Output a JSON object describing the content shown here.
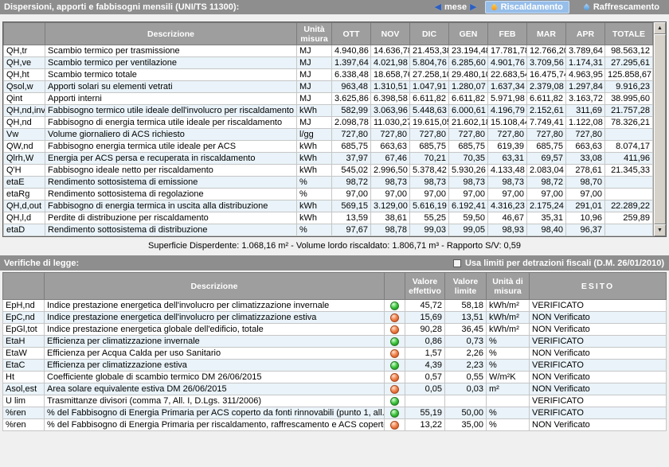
{
  "colors": {
    "title_bar": "#8E8E8E",
    "table_header": "#9E9E9E",
    "alt_row": "#E9F3F9",
    "selected_tab": "#97BEE9",
    "green_light": "#3CC43C",
    "orange_light": "#F08048",
    "nav_arrow_blue": "#2E5FBF"
  },
  "icons": {
    "prev_arrow": "◀",
    "next_arrow": "▶",
    "scroll_up": "▲",
    "scroll_down": "▼"
  },
  "header": {
    "title": "Dispersioni, apporti e fabbisogni mensili (UNI/TS 11300):",
    "mese": {
      "label": "mese"
    },
    "tabs": [
      {
        "label": "Riscaldamento",
        "icon": "flame-icon",
        "selected": true
      },
      {
        "label": "Raffrescamento",
        "icon": "water-drop-icon",
        "selected": false
      }
    ]
  },
  "monthly_table": {
    "headers": {
      "desc": "Descrizione",
      "unit": "Unità misura",
      "months": [
        "OTT",
        "NOV",
        "DIC",
        "GEN",
        "FEB",
        "MAR",
        "APR"
      ],
      "total": "TOTALE"
    },
    "rows": [
      {
        "code": "QH,tr",
        "desc": "Scambio termico per trasmissione",
        "unit": "MJ",
        "values": [
          "4.940,86",
          "14.636,78",
          "21.453,38",
          "23.194,48",
          "17.781,78",
          "12.766,20",
          "3.789,64"
        ],
        "total": "98.563,12"
      },
      {
        "code": "QH,ve",
        "desc": "Scambio termico per ventilazione",
        "unit": "MJ",
        "values": [
          "1.397,64",
          "4.021,98",
          "5.804,76",
          "6.285,60",
          "4.901,76",
          "3.709,56",
          "1.174,31"
        ],
        "total": "27.295,61"
      },
      {
        "code": "QH,ht",
        "desc": "Scambio termico totale",
        "unit": "MJ",
        "values": [
          "6.338,48",
          "18.658,76",
          "27.258,10",
          "29.480,10",
          "22.683,54",
          "16.475,74",
          "4.963,95"
        ],
        "total": "125.858,67"
      },
      {
        "code": "Qsol,w",
        "desc": "Apporti solari su elementi vetrati",
        "unit": "MJ",
        "values": [
          "963,48",
          "1.310,51",
          "1.047,91",
          "1.280,07",
          "1.637,34",
          "2.379,08",
          "1.297,84"
        ],
        "total": "9.916,23"
      },
      {
        "code": "Qint",
        "desc": "Apporti interni",
        "unit": "MJ",
        "values": [
          "3.625,86",
          "6.398,58",
          "6.611,82",
          "6.611,82",
          "5.971,98",
          "6.611,82",
          "3.163,72"
        ],
        "total": "38.995,60"
      },
      {
        "code": "QH,nd,inv",
        "desc": "Fabbisogno termico utile ideale dell'involucro per riscaldamento",
        "unit": "kWh",
        "values": [
          "582,99",
          "3.063,96",
          "5.448,63",
          "6.000,61",
          "4.196,79",
          "2.152,61",
          "311,69"
        ],
        "total": "21.757,28"
      },
      {
        "code": "QH,nd",
        "desc": "Fabbisogno di energia termica utile ideale per riscaldamento",
        "unit": "MJ",
        "values": [
          "2.098,78",
          "11.030,27",
          "19.615,05",
          "21.602,18",
          "15.108,44",
          "7.749,41",
          "1.122,08"
        ],
        "total": "78.326,21"
      },
      {
        "code": "Vw",
        "desc": "Volume giornaliero di ACS richiesto",
        "unit": "l/gg",
        "values": [
          "727,80",
          "727,80",
          "727,80",
          "727,80",
          "727,80",
          "727,80",
          "727,80"
        ],
        "total": ""
      },
      {
        "code": "QW,nd",
        "desc": "Fabbisogno energia termica utile ideale per ACS",
        "unit": "kWh",
        "values": [
          "685,75",
          "663,63",
          "685,75",
          "685,75",
          "619,39",
          "685,75",
          "663,63"
        ],
        "total": "8.074,17"
      },
      {
        "code": "Qlrh,W",
        "desc": "Energia per ACS persa e recuperata in riscaldamento",
        "unit": "kWh",
        "values": [
          "37,97",
          "67,46",
          "70,21",
          "70,35",
          "63,31",
          "69,57",
          "33,08"
        ],
        "total": "411,96"
      },
      {
        "code": "Q'H",
        "desc": "Fabbisogno ideale netto per riscaldamento",
        "unit": "kWh",
        "values": [
          "545,02",
          "2.996,50",
          "5.378,42",
          "5.930,26",
          "4.133,48",
          "2.083,04",
          "278,61"
        ],
        "total": "21.345,33"
      },
      {
        "code": "etaE",
        "desc": "Rendimento sottosistema di emissione",
        "unit": "%",
        "values": [
          "98,72",
          "98,73",
          "98,73",
          "98,73",
          "98,73",
          "98,72",
          "98,70"
        ],
        "total": ""
      },
      {
        "code": "etaRg",
        "desc": "Rendimento sottosistema di regolazione",
        "unit": "%",
        "values": [
          "97,00",
          "97,00",
          "97,00",
          "97,00",
          "97,00",
          "97,00",
          "97,00"
        ],
        "total": ""
      },
      {
        "code": "QH,d,out",
        "desc": "Fabbisogno di energia termica in uscita alla distribuzione",
        "unit": "kWh",
        "values": [
          "569,15",
          "3.129,00",
          "5.616,19",
          "6.192,41",
          "4.316,23",
          "2.175,24",
          "291,01"
        ],
        "total": "22.289,22"
      },
      {
        "code": "QH,l,d",
        "desc": "Perdite di distribuzione per riscaldamento",
        "unit": "kWh",
        "values": [
          "13,59",
          "38,61",
          "55,25",
          "59,50",
          "46,67",
          "35,31",
          "10,96"
        ],
        "total": "259,89"
      },
      {
        "code": "etaD",
        "desc": "Rendimento sottosistema di distribuzione",
        "unit": "%",
        "values": [
          "97,67",
          "98,78",
          "99,03",
          "99,05",
          "98,93",
          "98,40",
          "96,37"
        ],
        "total": ""
      }
    ]
  },
  "summary": "Superficie Disperdente: 1.068,16 m² - Volume lordo riscaldato: 1.806,71 m³ - Rapporto S/V: 0,59",
  "verifiche": {
    "title": "Verifiche di legge:",
    "checkbox": {
      "label": "Usa limiti per detrazioni fiscali (D.M. 26/01/2010)",
      "checked": false
    },
    "headers": {
      "desc": "Descrizione",
      "effettivo": "Valore effettivo",
      "limite": "Valore limite",
      "unit": "Unità di misura",
      "esito": "ESITO"
    },
    "rows": [
      {
        "code": "EpH,nd",
        "desc": "Indice prestazione energetica dell'involucro per climatizzazione invernale",
        "status": "green",
        "effettivo": "45,72",
        "limite": "58,18",
        "unit": "kWh/m²",
        "esito": "VERIFICATO"
      },
      {
        "code": "EpC,nd",
        "desc": "Indice prestazione energetica dell'involucro per climatizzazione estiva",
        "status": "orange",
        "effettivo": "15,69",
        "limite": "13,51",
        "unit": "kWh/m²",
        "esito": "NON Verificato"
      },
      {
        "code": "EpGl,tot",
        "desc": "Indice prestazione energetica globale dell'edificio, totale",
        "status": "orange",
        "effettivo": "90,28",
        "limite": "36,45",
        "unit": "kWh/m²",
        "esito": "NON Verificato"
      },
      {
        "code": "EtaH",
        "desc": "Efficienza per climatizzazione invernale",
        "status": "green",
        "effettivo": "0,86",
        "limite": "0,73",
        "unit": "%",
        "esito": "VERIFICATO"
      },
      {
        "code": "EtaW",
        "desc": "Efficienza per Acqua Calda per uso Sanitario",
        "status": "orange",
        "effettivo": "1,57",
        "limite": "2,26",
        "unit": "%",
        "esito": "NON Verificato"
      },
      {
        "code": "EtaC",
        "desc": "Efficienza per climatizzazione estiva",
        "status": "green",
        "effettivo": "4,39",
        "limite": "2,23",
        "unit": "%",
        "esito": "VERIFICATO"
      },
      {
        "code": "Ht",
        "desc": "Coefficiente globale di scambio termico DM 26/06/2015",
        "status": "orange",
        "effettivo": "0,57",
        "limite": "0,55",
        "unit": "W/m²K",
        "esito": "NON Verificato"
      },
      {
        "code": "Asol,est",
        "desc": "Area solare equivalente estiva DM 26/06/2015",
        "status": "orange",
        "effettivo": "0,05",
        "limite": "0,03",
        "unit": "m²",
        "esito": "NON Verificato"
      },
      {
        "code": "U lim",
        "desc": "Trasmittanze divisori (comma 7, All. I, D.Lgs. 311/2006)",
        "status": "green",
        "effettivo": "",
        "limite": "",
        "unit": "",
        "esito": "VERIFICATO"
      },
      {
        "code": "%ren",
        "desc": "% del Fabbisogno di Energia Primaria per ACS coperto da fonti rinnovabili (punto 1, all. 3, D.Lgs. 2...",
        "status": "green",
        "effettivo": "55,19",
        "limite": "50,00",
        "unit": "%",
        "esito": "VERIFICATO"
      },
      {
        "code": "%ren",
        "desc": "% del Fabbisogno di Energia Primaria per riscaldamento, raffrescamento e ACS coperto da fonti rin...",
        "status": "orange",
        "effettivo": "13,22",
        "limite": "35,00",
        "unit": "%",
        "esito": "NON Verificato"
      }
    ]
  }
}
